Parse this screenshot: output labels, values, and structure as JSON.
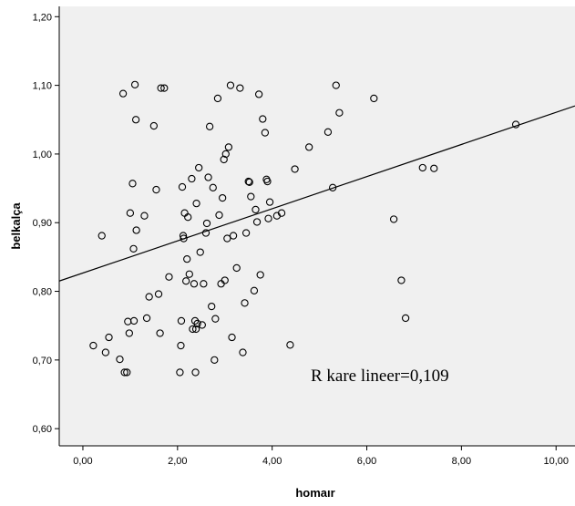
{
  "chart_data": {
    "type": "scatter",
    "xlabel": "homaır",
    "ylabel": "belkalça",
    "xlim": [
      -0.5,
      10.4
    ],
    "ylim": [
      0.575,
      1.215
    ],
    "x_ticks": [
      "0,00",
      "2,00",
      "4,00",
      "6,00",
      "8,00",
      "10,00"
    ],
    "x_tick_values": [
      0,
      2,
      4,
      6,
      8,
      10
    ],
    "y_ticks": [
      "0,60",
      "0,70",
      "0,80",
      "0,90",
      "1,00",
      "1,10",
      "1,20"
    ],
    "y_tick_values": [
      0.6,
      0.7,
      0.8,
      0.9,
      1.0,
      1.1,
      1.2
    ],
    "annotation": "R kare lineer=0,109",
    "fit_line": {
      "intercept": 0.8267,
      "slope": 0.0234
    },
    "grid": false,
    "background": "#f0f0f0",
    "marker_color": "#000000",
    "points": [
      {
        "x": 0.22,
        "y": 0.721
      },
      {
        "x": 0.4,
        "y": 0.881
      },
      {
        "x": 0.48,
        "y": 0.711
      },
      {
        "x": 0.55,
        "y": 0.733
      },
      {
        "x": 0.78,
        "y": 0.701
      },
      {
        "x": 0.85,
        "y": 1.088
      },
      {
        "x": 0.88,
        "y": 0.682
      },
      {
        "x": 0.93,
        "y": 0.682
      },
      {
        "x": 0.95,
        "y": 0.756
      },
      {
        "x": 0.98,
        "y": 0.739
      },
      {
        "x": 1.0,
        "y": 0.914
      },
      {
        "x": 1.05,
        "y": 0.957
      },
      {
        "x": 1.07,
        "y": 0.862
      },
      {
        "x": 1.08,
        "y": 0.757
      },
      {
        "x": 1.1,
        "y": 1.101
      },
      {
        "x": 1.12,
        "y": 1.05
      },
      {
        "x": 1.13,
        "y": 0.889
      },
      {
        "x": 1.3,
        "y": 0.91
      },
      {
        "x": 1.35,
        "y": 0.761
      },
      {
        "x": 1.4,
        "y": 0.792
      },
      {
        "x": 1.5,
        "y": 1.041
      },
      {
        "x": 1.55,
        "y": 0.948
      },
      {
        "x": 1.6,
        "y": 0.796
      },
      {
        "x": 1.63,
        "y": 0.739
      },
      {
        "x": 1.65,
        "y": 1.096
      },
      {
        "x": 1.72,
        "y": 1.096
      },
      {
        "x": 1.82,
        "y": 0.821
      },
      {
        "x": 2.05,
        "y": 0.682
      },
      {
        "x": 2.07,
        "y": 0.721
      },
      {
        "x": 2.08,
        "y": 0.757
      },
      {
        "x": 2.1,
        "y": 0.952
      },
      {
        "x": 2.12,
        "y": 0.881
      },
      {
        "x": 2.13,
        "y": 0.877
      },
      {
        "x": 2.15,
        "y": 0.914
      },
      {
        "x": 2.18,
        "y": 0.815
      },
      {
        "x": 2.2,
        "y": 0.847
      },
      {
        "x": 2.22,
        "y": 0.908
      },
      {
        "x": 2.25,
        "y": 0.825
      },
      {
        "x": 2.3,
        "y": 0.964
      },
      {
        "x": 2.32,
        "y": 0.745
      },
      {
        "x": 2.35,
        "y": 0.811
      },
      {
        "x": 2.37,
        "y": 0.757
      },
      {
        "x": 2.38,
        "y": 0.682
      },
      {
        "x": 2.39,
        "y": 0.745
      },
      {
        "x": 2.4,
        "y": 0.928
      },
      {
        "x": 2.42,
        "y": 0.753
      },
      {
        "x": 2.45,
        "y": 0.98
      },
      {
        "x": 2.48,
        "y": 0.857
      },
      {
        "x": 2.52,
        "y": 0.751
      },
      {
        "x": 2.55,
        "y": 0.811
      },
      {
        "x": 2.6,
        "y": 0.885
      },
      {
        "x": 2.62,
        "y": 0.899
      },
      {
        "x": 2.65,
        "y": 0.966
      },
      {
        "x": 2.68,
        "y": 1.04
      },
      {
        "x": 2.72,
        "y": 0.778
      },
      {
        "x": 2.75,
        "y": 0.951
      },
      {
        "x": 2.78,
        "y": 0.7
      },
      {
        "x": 2.8,
        "y": 0.76
      },
      {
        "x": 2.85,
        "y": 1.081
      },
      {
        "x": 2.88,
        "y": 0.911
      },
      {
        "x": 2.92,
        "y": 0.811
      },
      {
        "x": 2.95,
        "y": 0.936
      },
      {
        "x": 2.98,
        "y": 0.992
      },
      {
        "x": 3.0,
        "y": 0.816
      },
      {
        "x": 3.02,
        "y": 1.0
      },
      {
        "x": 3.05,
        "y": 0.877
      },
      {
        "x": 3.08,
        "y": 1.01
      },
      {
        "x": 3.12,
        "y": 1.1
      },
      {
        "x": 3.15,
        "y": 0.733
      },
      {
        "x": 3.18,
        "y": 0.881
      },
      {
        "x": 3.25,
        "y": 0.834
      },
      {
        "x": 3.32,
        "y": 1.096
      },
      {
        "x": 3.38,
        "y": 0.711
      },
      {
        "x": 3.42,
        "y": 0.783
      },
      {
        "x": 3.45,
        "y": 0.885
      },
      {
        "x": 3.5,
        "y": 0.96
      },
      {
        "x": 3.52,
        "y": 0.959
      },
      {
        "x": 3.55,
        "y": 0.938
      },
      {
        "x": 3.62,
        "y": 0.801
      },
      {
        "x": 3.65,
        "y": 0.919
      },
      {
        "x": 3.68,
        "y": 0.901
      },
      {
        "x": 3.72,
        "y": 1.087
      },
      {
        "x": 3.75,
        "y": 0.824
      },
      {
        "x": 3.8,
        "y": 1.051
      },
      {
        "x": 3.85,
        "y": 1.031
      },
      {
        "x": 3.88,
        "y": 0.963
      },
      {
        "x": 3.9,
        "y": 0.96
      },
      {
        "x": 3.92,
        "y": 0.906
      },
      {
        "x": 3.95,
        "y": 0.93
      },
      {
        "x": 4.1,
        "y": 0.91
      },
      {
        "x": 4.2,
        "y": 0.914
      },
      {
        "x": 4.38,
        "y": 0.722
      },
      {
        "x": 4.48,
        "y": 0.978
      },
      {
        "x": 4.78,
        "y": 1.01
      },
      {
        "x": 5.18,
        "y": 1.032
      },
      {
        "x": 5.28,
        "y": 0.951
      },
      {
        "x": 5.35,
        "y": 1.1
      },
      {
        "x": 5.42,
        "y": 1.06
      },
      {
        "x": 6.15,
        "y": 1.081
      },
      {
        "x": 6.57,
        "y": 0.905
      },
      {
        "x": 6.73,
        "y": 0.816
      },
      {
        "x": 6.82,
        "y": 0.761
      },
      {
        "x": 7.18,
        "y": 0.98
      },
      {
        "x": 7.42,
        "y": 0.979
      },
      {
        "x": 9.15,
        "y": 1.043
      }
    ]
  }
}
